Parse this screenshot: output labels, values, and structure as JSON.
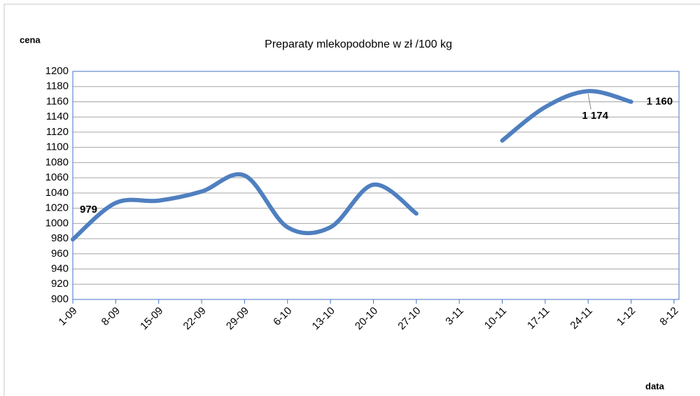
{
  "chart_data": {
    "type": "line",
    "title": "Preparaty mlekopodobne w zł /100 kg",
    "y_label": "cena",
    "x_label": "data",
    "categories": [
      "1-09",
      "8-09",
      "15-09",
      "22-09",
      "29-09",
      "6-10",
      "13-10",
      "20-10",
      "27-10",
      "3-11",
      "10-11",
      "17-11",
      "24-11",
      "1-12",
      "8-12"
    ],
    "series": [
      {
        "name": "Preparaty mlekopodobne",
        "color": "#4f7fc0",
        "values": [
          979,
          1027,
          1030,
          1042,
          1063,
          995,
          995,
          1051,
          1013,
          null,
          1109,
          1153,
          1174,
          1160,
          null
        ],
        "value_labels": [
          "979",
          null,
          null,
          null,
          null,
          null,
          null,
          null,
          null,
          null,
          null,
          null,
          "1 174",
          "1 160",
          null
        ]
      }
    ],
    "ylim": [
      900,
      1200
    ],
    "yticks": [
      900,
      920,
      940,
      960,
      980,
      1000,
      1020,
      1040,
      1060,
      1080,
      1100,
      1120,
      1140,
      1160,
      1180,
      1200
    ],
    "grid": true
  }
}
